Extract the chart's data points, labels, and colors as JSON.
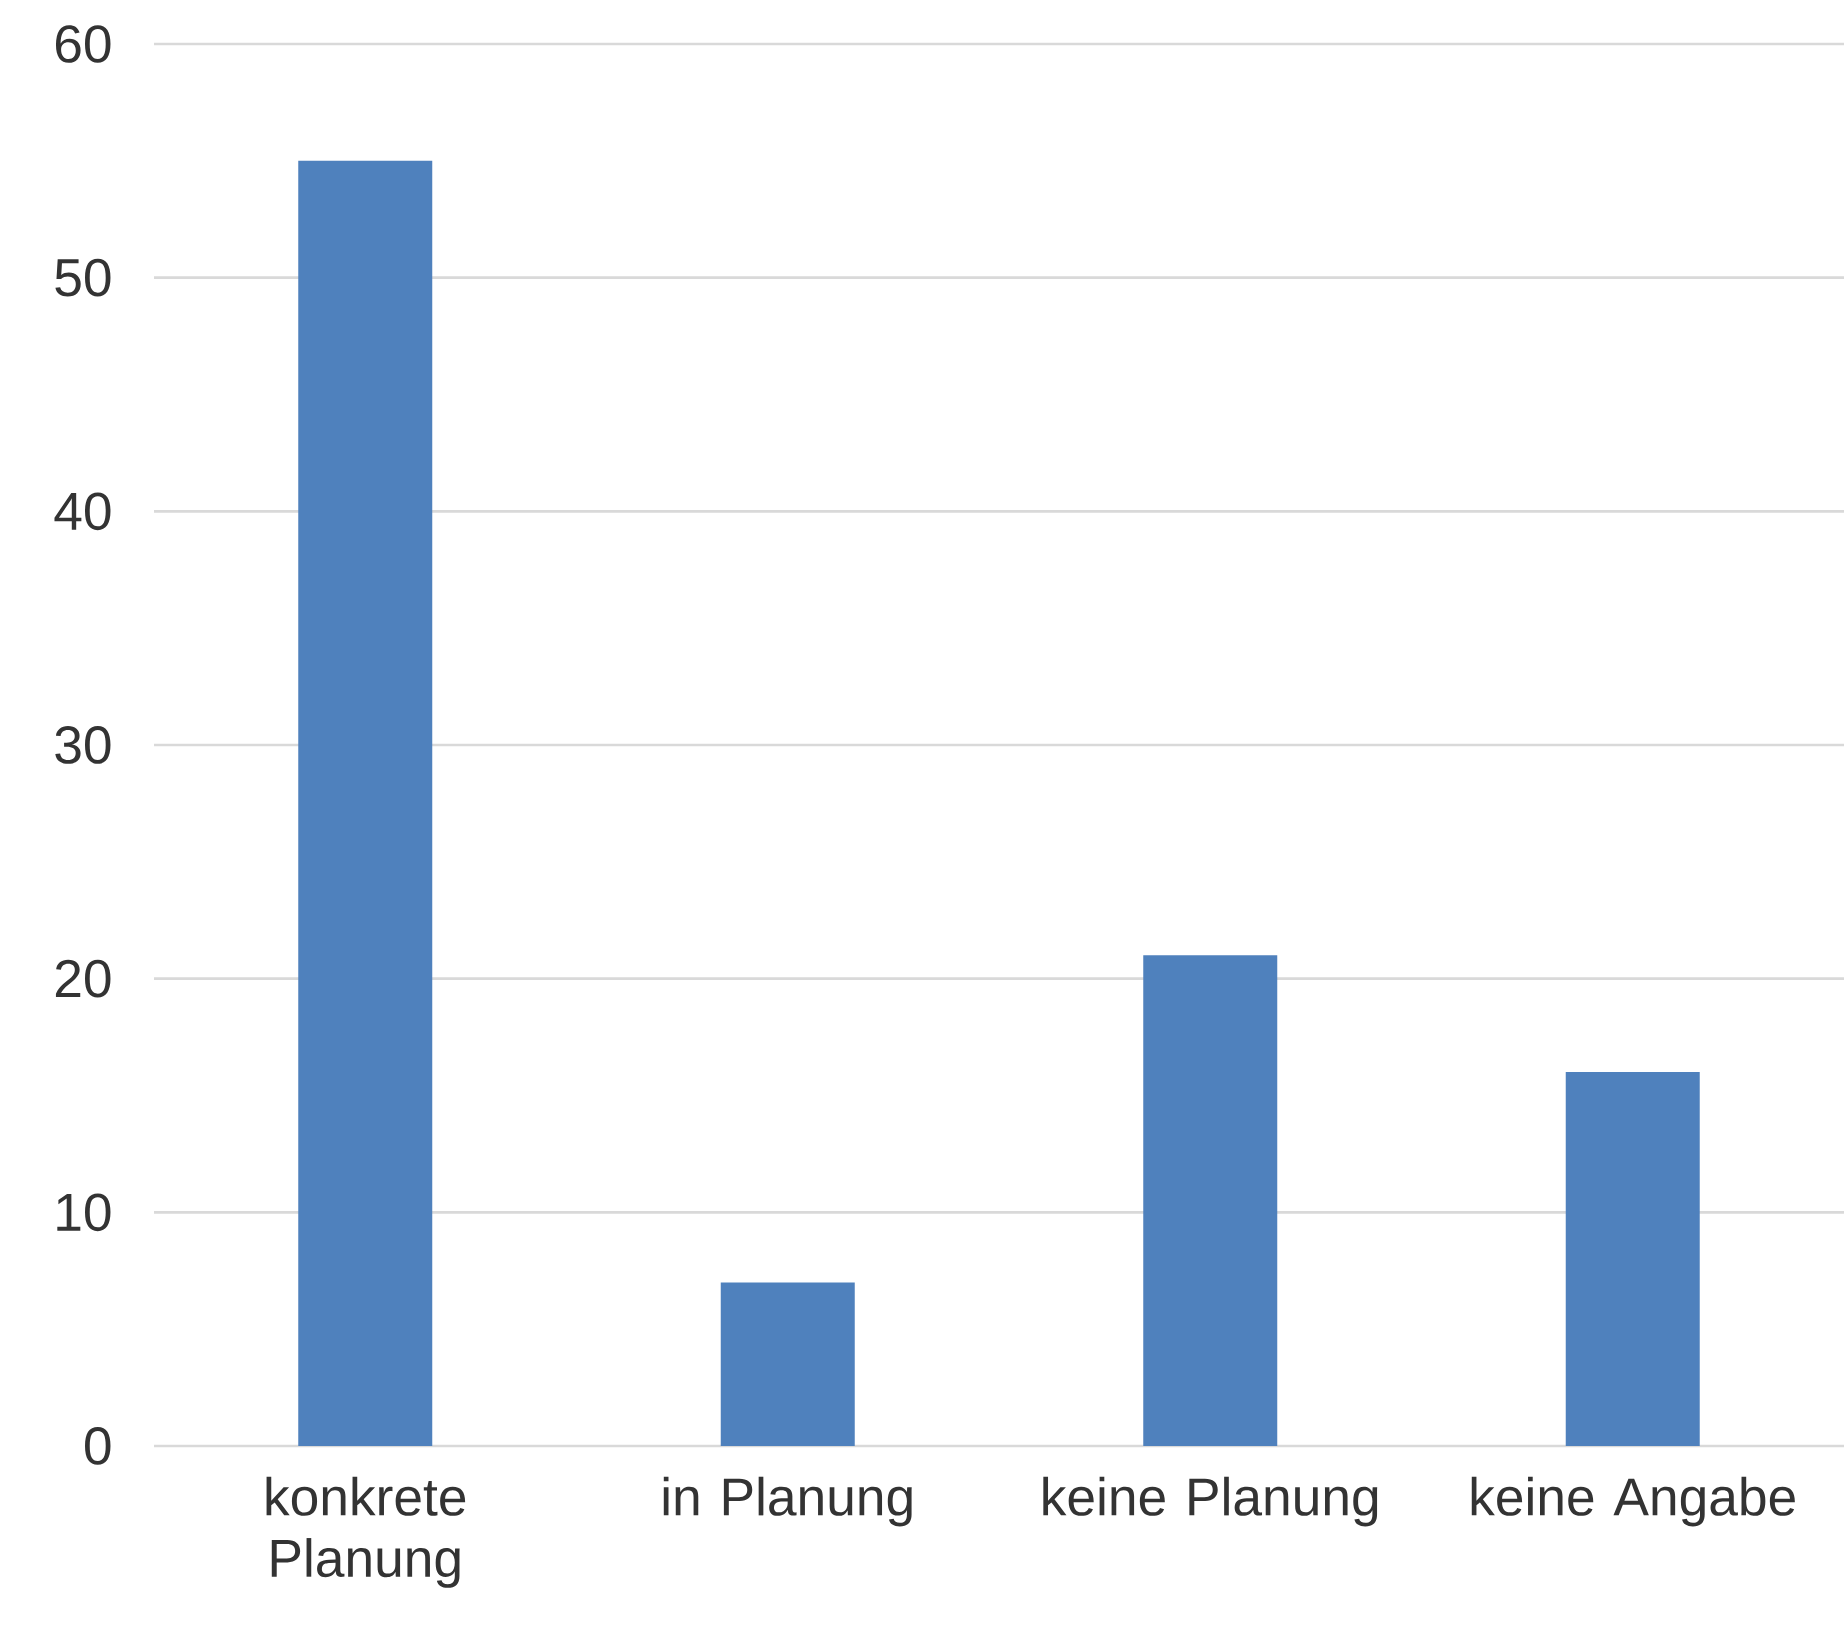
{
  "chart_data": {
    "type": "bar",
    "categories": [
      "konkrete Planung",
      "in Planung",
      "keine Planung",
      "keine Angabe"
    ],
    "values": [
      55,
      7,
      21,
      16
    ],
    "color": "#4f81bd",
    "ylim": [
      0,
      60
    ],
    "yticks": [
      0,
      10,
      20,
      30,
      40,
      50,
      60
    ],
    "grid": "y"
  }
}
